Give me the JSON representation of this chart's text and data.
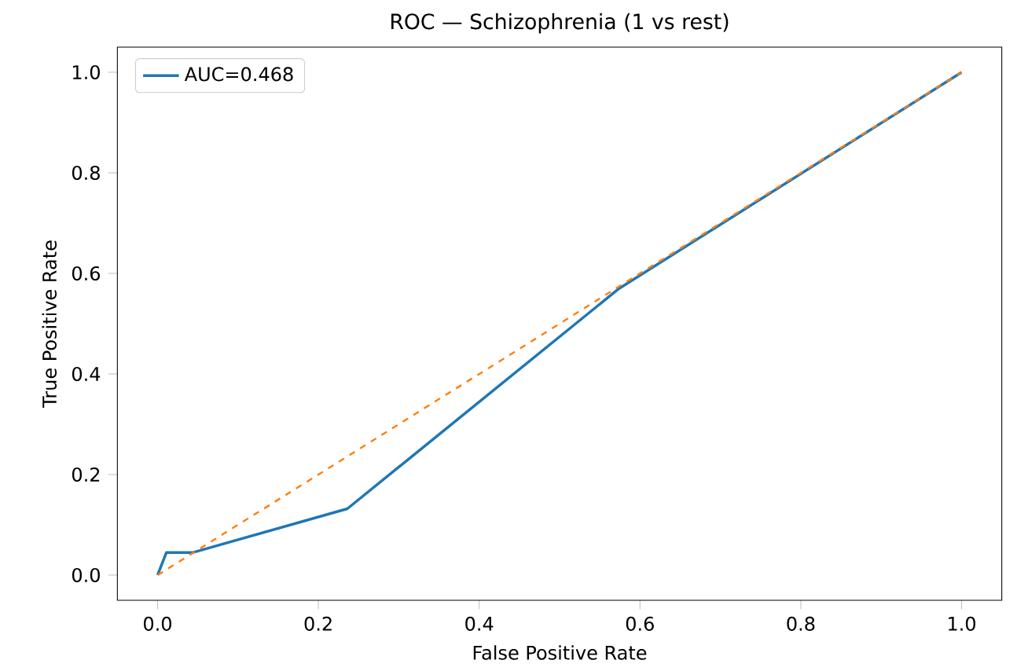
{
  "chart_data": {
    "type": "line",
    "title": "ROC — Schizophrenia (1 vs rest)",
    "xlabel": "False Positive Rate",
    "ylabel": "True Positive Rate",
    "series": [
      {
        "name": "AUC=0.468",
        "color": "#1f77b4",
        "x": [
          0,
          0.011,
          0.044,
          0.236,
          0.574,
          1.0
        ],
        "values": [
          0,
          0.045,
          0.045,
          0.132,
          0.57,
          1.0
        ],
        "line_style": "solid"
      },
      {
        "color": "#ff7f0e",
        "x": [
          0,
          1
        ],
        "values": [
          0,
          1
        ],
        "line_style": "dashed"
      }
    ],
    "xlim": [
      -0.05,
      1.05
    ],
    "ylim": [
      -0.05,
      1.05
    ],
    "xticks": [
      {
        "value": 0,
        "label": "0.0"
      },
      {
        "value": 0.2,
        "label": "0.2"
      },
      {
        "value": 0.4,
        "label": "0.4"
      },
      {
        "value": 0.6,
        "label": "0.6"
      },
      {
        "value": 0.8,
        "label": "0.8"
      },
      {
        "value": 1.0,
        "label": "1.0"
      }
    ],
    "yticks": [
      {
        "value": 0,
        "label": "0.0"
      },
      {
        "value": 0.2,
        "label": "0.2"
      },
      {
        "value": 0.4,
        "label": "0.4"
      },
      {
        "value": 0.6,
        "label": "0.6"
      },
      {
        "value": 0.8,
        "label": "0.8"
      },
      {
        "value": 1.0,
        "label": "1.0"
      }
    ],
    "legend": "top left",
    "grid": false,
    "marker": "none"
  }
}
